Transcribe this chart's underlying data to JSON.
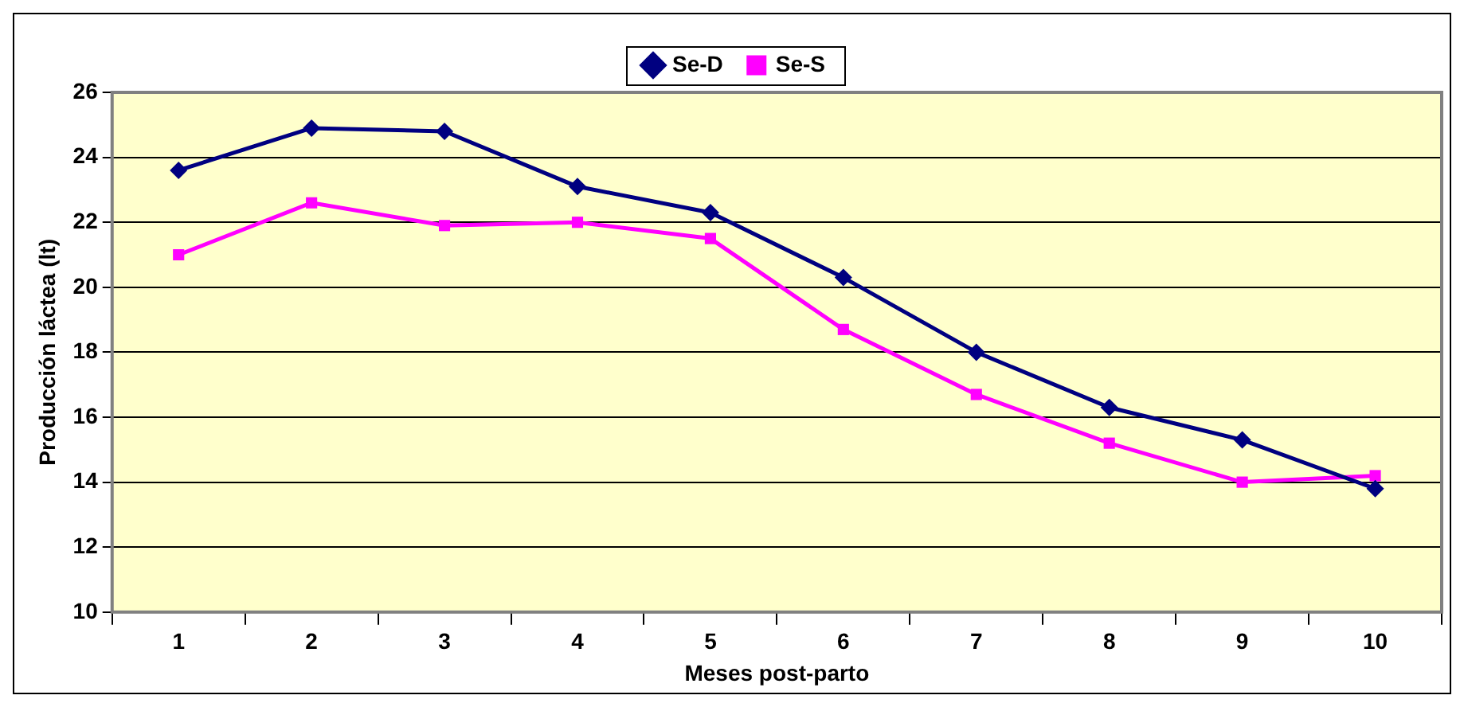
{
  "chart_data": {
    "type": "line",
    "xlabel": "Meses post-parto",
    "ylabel": "Producción láctea (lt)",
    "categories": [
      "1",
      "2",
      "3",
      "4",
      "5",
      "6",
      "7",
      "8",
      "9",
      "10"
    ],
    "series": [
      {
        "name": "Se-D",
        "color": "#000080",
        "marker": "diamond",
        "values": [
          23.6,
          24.9,
          24.8,
          23.1,
          22.3,
          20.3,
          18.0,
          16.3,
          15.3,
          13.8
        ]
      },
      {
        "name": "Se-S",
        "color": "#ff00ff",
        "marker": "square",
        "values": [
          21.0,
          22.6,
          21.9,
          22.0,
          21.5,
          18.7,
          16.7,
          15.2,
          14.0,
          14.2
        ]
      }
    ],
    "ylim": [
      10,
      26
    ],
    "yticks": [
      10,
      12,
      14,
      16,
      18,
      20,
      22,
      24,
      26
    ],
    "grid": "y",
    "legend": "top",
    "line_style": "solid"
  }
}
